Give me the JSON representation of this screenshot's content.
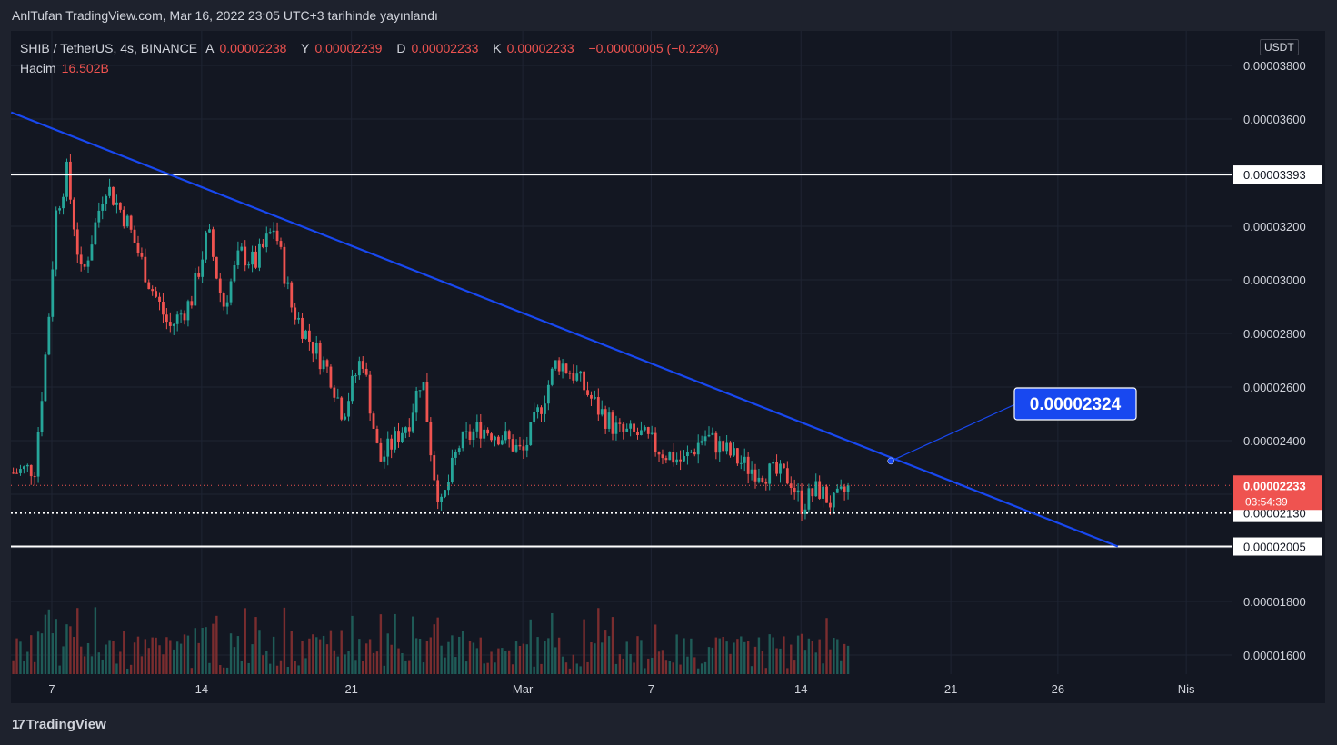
{
  "header": {
    "caption": "AnlTufan TradingView.com, Mar 16, 2022 23:05 UTC+3 tarihinde yayınlandı"
  },
  "legend": {
    "symbol": "SHIB / TetherUS, 4s, BINANCE",
    "o_label": "A",
    "o_value": "0.00002238",
    "h_label": "Y",
    "h_value": "0.00002239",
    "l_label": "D",
    "l_value": "0.00002233",
    "c_label": "K",
    "c_value": "0.00002233",
    "change": "−0.00000005 (−0.22%)",
    "volume_label": "Hacim",
    "volume_value": "16.502B"
  },
  "price_axis": {
    "currency": "USDT"
  },
  "footer": {
    "brand": "TradingView"
  },
  "colors": {
    "up": "#26a69a",
    "down": "#ef5350",
    "trendline": "#1848f0",
    "level": "#ffffff",
    "bg": "#131722"
  },
  "chart_data": {
    "type": "candlestick",
    "symbol": "SHIB/USDT",
    "timeframe": "4h",
    "ylim": [
      1.54e-05,
      3.87e-05
    ],
    "y_ticks": [
      "0.00003800",
      "0.00003600",
      "0.00003200",
      "0.00003000",
      "0.00002800",
      "0.00002600",
      "0.00002400",
      "0.00001800",
      "0.00001600"
    ],
    "x_ticks": [
      {
        "label": "7",
        "day": 7
      },
      {
        "label": "14",
        "day": 14
      },
      {
        "label": "21",
        "day": 21
      },
      {
        "label": "Mar",
        "day": 29
      },
      {
        "label": "7",
        "day": 35
      },
      {
        "label": "14",
        "day": 42
      },
      {
        "label": "21",
        "day": 49
      },
      {
        "label": "26",
        "day": 54
      },
      {
        "label": "Nis",
        "day": 60
      }
    ],
    "levels": [
      {
        "price": 3.393e-05,
        "label": "0.00003393",
        "style": "solid"
      },
      {
        "price": 2.13e-05,
        "label": "0.00002130",
        "style": "dotted"
      },
      {
        "price": 2.005e-05,
        "label": "0.00002005",
        "style": "solid"
      }
    ],
    "last_price": {
      "price": 2.233e-05,
      "label": "0.00002233",
      "countdown": "03:54:39"
    },
    "trendline": {
      "start": {
        "day": 5.1,
        "price": 3.625e-05
      },
      "end": {
        "day": 56.8,
        "price": 2.005e-05
      }
    },
    "callout": {
      "label": "0.00002324",
      "anchor": {
        "day": 46.2,
        "price": 2.324e-05
      }
    },
    "closes": [
      {
        "day": 5.2,
        "price": 2.28e-05
      },
      {
        "day": 6.2,
        "price": 2.3e-05
      },
      {
        "day": 6.8,
        "price": 2.8e-05
      },
      {
        "day": 7.2,
        "price": 3.25e-05
      },
      {
        "day": 7.7,
        "price": 3.4e-05
      },
      {
        "day": 8.4,
        "price": 3e-05
      },
      {
        "day": 9.5,
        "price": 3.36e-05
      },
      {
        "day": 10.5,
        "price": 3.22e-05
      },
      {
        "day": 11.5,
        "price": 3e-05
      },
      {
        "day": 12.5,
        "price": 2.82e-05
      },
      {
        "day": 13.5,
        "price": 2.92e-05
      },
      {
        "day": 14.3,
        "price": 3.18e-05
      },
      {
        "day": 15.0,
        "price": 2.9e-05
      },
      {
        "day": 15.8,
        "price": 3.1e-05
      },
      {
        "day": 16.5,
        "price": 3.06e-05
      },
      {
        "day": 17.4,
        "price": 3.2e-05
      },
      {
        "day": 18.2,
        "price": 2.9e-05
      },
      {
        "day": 19.0,
        "price": 2.78e-05
      },
      {
        "day": 20.0,
        "price": 2.65e-05
      },
      {
        "day": 20.6,
        "price": 2.5e-05
      },
      {
        "day": 21.5,
        "price": 2.72e-05
      },
      {
        "day": 22.3,
        "price": 2.32e-05
      },
      {
        "day": 23.0,
        "price": 2.4e-05
      },
      {
        "day": 23.7,
        "price": 2.48e-05
      },
      {
        "day": 24.3,
        "price": 2.65e-05
      },
      {
        "day": 24.8,
        "price": 2.3e-05
      },
      {
        "day": 25.2,
        "price": 2.15e-05
      },
      {
        "day": 26.0,
        "price": 2.38e-05
      },
      {
        "day": 27.0,
        "price": 2.45e-05
      },
      {
        "day": 28.0,
        "price": 2.42e-05
      },
      {
        "day": 29.0,
        "price": 2.35e-05
      },
      {
        "day": 29.8,
        "price": 2.52e-05
      },
      {
        "day": 30.6,
        "price": 2.7e-05
      },
      {
        "day": 31.5,
        "price": 2.64e-05
      },
      {
        "day": 32.5,
        "price": 2.52e-05
      },
      {
        "day": 33.5,
        "price": 2.43e-05
      },
      {
        "day": 34.5,
        "price": 2.42e-05
      },
      {
        "day": 35.5,
        "price": 2.36e-05
      },
      {
        "day": 36.5,
        "price": 2.32e-05
      },
      {
        "day": 37.5,
        "price": 2.42e-05
      },
      {
        "day": 38.5,
        "price": 2.36e-05
      },
      {
        "day": 39.5,
        "price": 2.3e-05
      },
      {
        "day": 40.5,
        "price": 2.28e-05
      },
      {
        "day": 41.5,
        "price": 2.26e-05
      },
      {
        "day": 42.0,
        "price": 2.16e-05
      },
      {
        "day": 42.8,
        "price": 2.22e-05
      },
      {
        "day": 43.5,
        "price": 2.16e-05
      },
      {
        "day": 44.3,
        "price": 2.23e-05
      }
    ]
  }
}
